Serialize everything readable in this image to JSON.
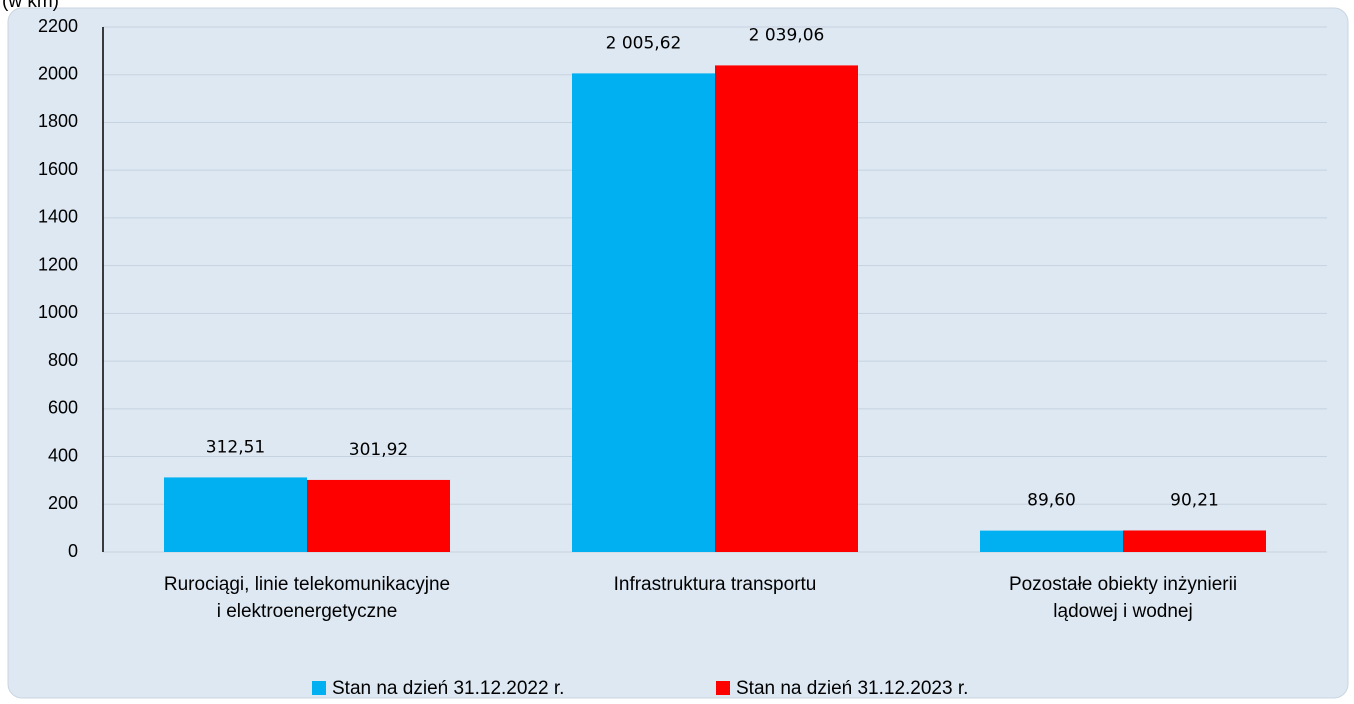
{
  "chart_data": {
    "type": "bar",
    "y_axis_label": "(w km)",
    "categories": [
      "Rurociągi, linie telekomunikacyjne\ni elektroenergetyczne",
      "Infrastruktura transportu",
      "Pozostałe obiekty inżynierii\nlądowej i wodnej"
    ],
    "series": [
      {
        "name": "Stan na dzień 31.12.2022 r.",
        "color": "#00b0f0",
        "values": [
          312.51,
          2005.62,
          89.6
        ],
        "value_labels": [
          "312,51",
          "2 005,62",
          "89,60"
        ]
      },
      {
        "name": "Stan na dzień 31.12.2023 r.",
        "color": "#ff0000",
        "values": [
          301.92,
          2039.06,
          90.21
        ],
        "value_labels": [
          "301,92",
          "2 039,06",
          "90,21"
        ]
      }
    ],
    "ylim": [
      0,
      2200
    ],
    "yticks": [
      0,
      200,
      400,
      600,
      800,
      1000,
      1200,
      1400,
      1600,
      1800,
      2000,
      2200
    ],
    "grid": true,
    "legend": "bottom"
  }
}
